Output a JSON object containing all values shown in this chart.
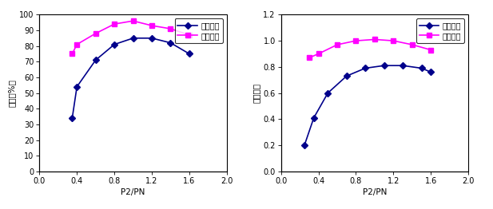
{
  "chart1": {
    "xlabel": "P2/PN",
    "ylabel": "效率（%）",
    "xlim": [
      0,
      2
    ],
    "ylim": [
      0,
      100
    ],
    "xticks": [
      0,
      0.4,
      0.8,
      1.2,
      1.6,
      2
    ],
    "yticks": [
      0,
      10,
      20,
      30,
      40,
      50,
      60,
      70,
      80,
      90,
      100
    ],
    "async_x": [
      0.35,
      0.4,
      0.6,
      0.8,
      1.0,
      1.2,
      1.4,
      1.6
    ],
    "async_y": [
      34,
      54,
      71,
      81,
      85,
      85,
      82,
      75
    ],
    "pm_x": [
      0.35,
      0.4,
      0.6,
      0.8,
      1.0,
      1.2,
      1.4,
      1.6
    ],
    "pm_y": [
      75,
      81,
      88,
      94,
      96,
      93,
      91,
      87
    ],
    "async_label": "异步电机",
    "pm_label": "永磁电机",
    "async_color": "#00008B",
    "pm_color": "#FF00FF",
    "marker_async": "D",
    "marker_pm": "s",
    "legend_loc": "upper right"
  },
  "chart2": {
    "xlabel": "P2/PN",
    "ylabel": "功率因素",
    "xlim": [
      0,
      2
    ],
    "ylim": [
      0,
      1.2
    ],
    "xticks": [
      0,
      0.4,
      0.8,
      1.2,
      1.6,
      2
    ],
    "yticks": [
      0,
      0.2,
      0.4,
      0.6,
      0.8,
      1.0,
      1.2
    ],
    "async_x": [
      0.25,
      0.35,
      0.5,
      0.7,
      0.9,
      1.1,
      1.3,
      1.5,
      1.6
    ],
    "async_y": [
      0.2,
      0.41,
      0.6,
      0.73,
      0.79,
      0.81,
      0.81,
      0.79,
      0.76
    ],
    "pm_x": [
      0.3,
      0.4,
      0.6,
      0.8,
      1.0,
      1.2,
      1.4,
      1.6
    ],
    "pm_y": [
      0.87,
      0.9,
      0.97,
      1.0,
      1.01,
      1.0,
      0.97,
      0.93
    ],
    "async_label": "异步电机",
    "pm_label": "永磁电机",
    "async_color": "#00008B",
    "pm_color": "#FF00FF",
    "marker_async": "D",
    "marker_pm": "s",
    "legend_loc": "upper right"
  },
  "bg_color": "#FFFFFF",
  "font_size": 7.5,
  "tick_font_size": 7,
  "marker_size": 4,
  "line_width": 1.2
}
